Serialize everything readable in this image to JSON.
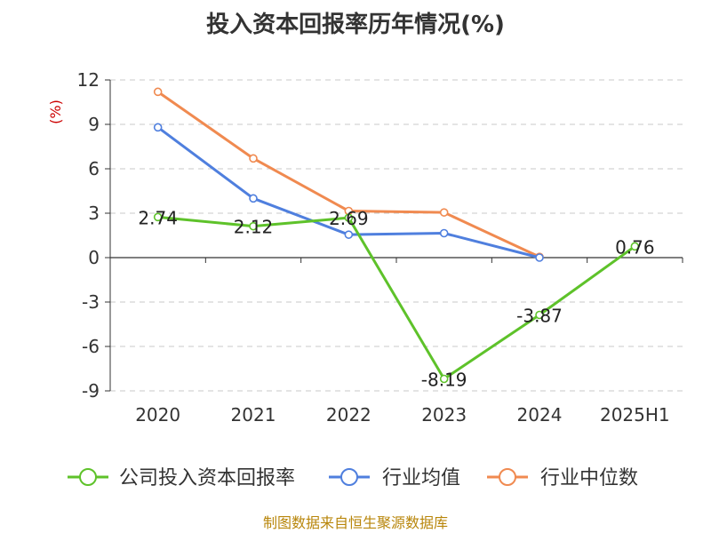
{
  "title": "投入资本回报率历年情况(%)",
  "source": "制图数据来自恒生聚源数据库",
  "chart_data": {
    "type": "line",
    "title": "投入资本回报率历年情况(%)",
    "ylabel": "(%)",
    "xlabel": "",
    "categories": [
      "2020",
      "2021",
      "2022",
      "2023",
      "2024",
      "2025H1"
    ],
    "ylim": [
      -9,
      12
    ],
    "yticks": [
      12,
      9,
      6,
      3,
      0,
      -3,
      -6,
      -9
    ],
    "grid": true,
    "legend_position": "bottom",
    "series": [
      {
        "name": "公司投入资本回报率",
        "color": "#5ec22a",
        "values": [
          2.74,
          2.12,
          2.69,
          -8.19,
          -3.87,
          0.76
        ],
        "labels": [
          "2.74",
          "2.12",
          "2.69",
          "-8.19",
          "-3.87",
          "0.76"
        ]
      },
      {
        "name": "行业均值",
        "color": "#4f7fde",
        "values": [
          8.8,
          4.0,
          1.55,
          1.65,
          0.0,
          null
        ]
      },
      {
        "name": "行业中位数",
        "color": "#f08a50",
        "values": [
          11.2,
          6.7,
          3.15,
          3.05,
          0.05,
          null
        ]
      }
    ]
  }
}
